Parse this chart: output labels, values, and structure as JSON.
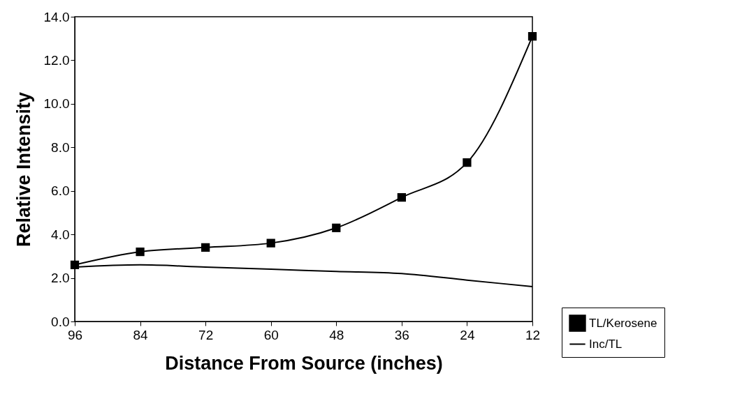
{
  "chart_data": {
    "type": "line",
    "xlabel": "Distance From Source (inches)",
    "ylabel": "Relative Intensity",
    "categories": [
      "96",
      "84",
      "72",
      "60",
      "48",
      "36",
      "24",
      "12"
    ],
    "series": [
      {
        "name": "TL/Kerosene",
        "color": "#000000",
        "marker": "square",
        "values": [
          2.6,
          3.2,
          3.4,
          3.6,
          4.3,
          5.7,
          7.3,
          13.1
        ]
      },
      {
        "name": "Inc/TL",
        "color": "#000000",
        "marker": "none",
        "values": [
          2.5,
          2.6,
          2.5,
          2.4,
          2.3,
          2.2,
          1.9,
          1.6
        ]
      }
    ],
    "ylim": [
      0,
      14
    ],
    "yticks": [
      {
        "value": 0,
        "label": "0.0"
      },
      {
        "value": 2,
        "label": "2.0"
      },
      {
        "value": 4,
        "label": "4.0"
      },
      {
        "value": 6,
        "label": "6.0"
      },
      {
        "value": 8,
        "label": "8.0"
      },
      {
        "value": 10,
        "label": "10.0"
      },
      {
        "value": 12,
        "label": "12.0"
      },
      {
        "value": 14,
        "label": "14.0"
      }
    ],
    "grid": false,
    "legend": "bottom right"
  }
}
